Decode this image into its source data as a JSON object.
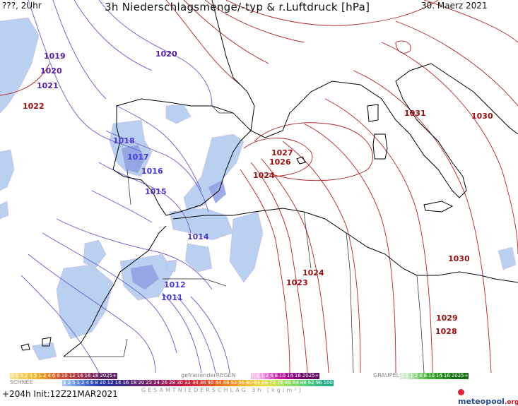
{
  "header": {
    "left": "???, 2Uhr",
    "title": "3h Niederschlagsmenge/-typ & r.Luftdruck [hPa]",
    "date": "30. Maerz 2021"
  },
  "isobar_labels": [
    {
      "text": "1019",
      "color": "#5a1fa0"
    },
    {
      "text": "1020",
      "color": "#5a1fa0"
    },
    {
      "text": "1021",
      "color": "#5a1fa0"
    },
    {
      "text": "1022",
      "color": "#9a1010"
    },
    {
      "text": "1020",
      "color": "#5a1fa0"
    },
    {
      "text": "1018",
      "color": "#4a3ad0"
    },
    {
      "text": "1017",
      "color": "#4a3ad0"
    },
    {
      "text": "1016",
      "color": "#4a3ad0"
    },
    {
      "text": "1015",
      "color": "#4a3ad0"
    },
    {
      "text": "1014",
      "color": "#4a3ad0"
    },
    {
      "text": "1012",
      "color": "#4a3ad0"
    },
    {
      "text": "1011",
      "color": "#4a3ad0"
    },
    {
      "text": "1027",
      "color": "#9a1010"
    },
    {
      "text": "1026",
      "color": "#9a1010"
    },
    {
      "text": "1024",
      "color": "#9a1010"
    },
    {
      "text": "1031",
      "color": "#9a1010"
    },
    {
      "text": "1030",
      "color": "#9a1010"
    },
    {
      "text": "1030",
      "color": "#9a1010"
    },
    {
      "text": "1024",
      "color": "#9a1010"
    },
    {
      "text": "1023",
      "color": "#9a1010"
    },
    {
      "text": "1029",
      "color": "#9a1010"
    },
    {
      "text": "1028",
      "color": "#9a1010"
    }
  ],
  "legend": {
    "schnee_label": "SCHNEE",
    "schnee_values": [
      "0.1",
      "0.2",
      "0.5",
      "1",
      "2",
      "4",
      "6",
      "8",
      "10",
      "12",
      "14",
      "16",
      "18",
      "2025+"
    ],
    "regen_label": "gefrierenderREGEN",
    "regen_values": [
      "0.1",
      "1",
      "2",
      "4",
      "8",
      "10",
      "14",
      "16",
      "2025+"
    ],
    "graupel_label": "GRAUPEL",
    "graupel_values": [
      "0.1",
      "1",
      "2",
      "4",
      "8",
      "10",
      "14",
      "16",
      "2025+"
    ],
    "gesamt_values": [
      "1",
      "2",
      "5",
      "1",
      "2",
      "4",
      "6",
      "8",
      "10",
      "12",
      "14",
      "16",
      "18",
      "20",
      "22",
      "24",
      "26",
      "28",
      "30",
      "32",
      "34",
      "36",
      "40",
      "44",
      "48",
      "52",
      "56",
      "60",
      "64",
      "68",
      "72",
      "76",
      "80",
      "84",
      "88",
      "92",
      "96",
      "100"
    ],
    "gesamt_label": "GESAMTNIEDERSCHLAG 3h [kg/m²]"
  },
  "footer": {
    "left": "+204h  Init:12Z21MAR2021",
    "logo": "meteopool",
    "logo_tld": ".org"
  },
  "colors": {
    "low_isobar": "#6a5acd",
    "high_isobar": "#b22222",
    "precip": "#a9c4ec",
    "coast": "#000000"
  }
}
